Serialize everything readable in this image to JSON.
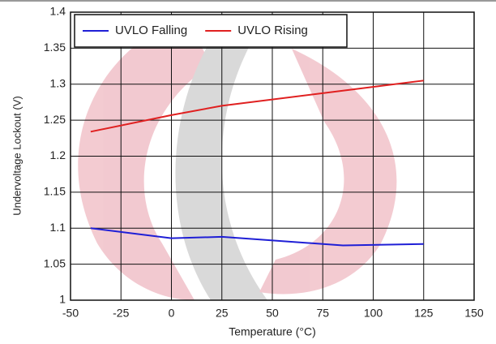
{
  "chart_data": {
    "type": "line",
    "x_label": "Temperature (°C)",
    "y_label": "Undervoltage Lockout (V)",
    "x": [
      -40,
      0,
      25,
      85,
      125
    ],
    "series": [
      {
        "name": "UVLO Falling",
        "color": "#1f1fd6",
        "values": [
          1.1,
          1.086,
          1.088,
          1.076,
          1.078
        ]
      },
      {
        "name": "UVLO Rising",
        "color": "#e02020",
        "values": [
          1.234,
          1.257,
          1.27,
          1.291,
          1.305
        ]
      }
    ],
    "xlim": [
      -50,
      150
    ],
    "xticks": [
      -50,
      -25,
      0,
      25,
      50,
      75,
      100,
      125,
      150
    ],
    "ylim": [
      1,
      1.4
    ],
    "yticks": [
      1,
      1.05,
      1.1,
      1.15,
      1.2,
      1.25,
      1.3,
      1.35,
      1.4
    ],
    "grid": true,
    "legend": "upper left"
  }
}
